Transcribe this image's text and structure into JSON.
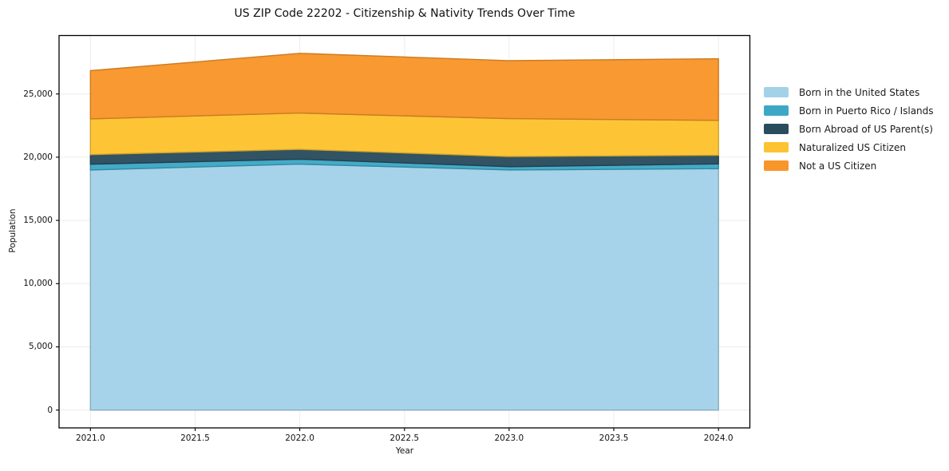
{
  "chart_data": {
    "type": "area",
    "stacked": true,
    "title": "US ZIP Code 22202 - Citizenship & Nativity Trends Over Time",
    "xlabel": "Year",
    "ylabel": "Population",
    "x": [
      2021,
      2022,
      2023,
      2024
    ],
    "series": [
      {
        "name": "Born in the United States",
        "color": "#a3d2e8",
        "values": [
          18990,
          19450,
          18990,
          19090
        ]
      },
      {
        "name": "Born in Puerto Rico / Islands",
        "color": "#3da8c6",
        "values": [
          450,
          390,
          260,
          380
        ]
      },
      {
        "name": "Born Abroad of US Parent(s)",
        "color": "#2a4d5e",
        "values": [
          760,
          780,
          800,
          680
        ]
      },
      {
        "name": "Naturalized US Citizen",
        "color": "#fdc330",
        "values": [
          2830,
          2870,
          3000,
          2760
        ]
      },
      {
        "name": "Not a US Citizen",
        "color": "#f8962a",
        "values": [
          3810,
          4720,
          4580,
          4870
        ]
      }
    ],
    "totals": [
      26840,
      28210,
      27630,
      27780
    ],
    "xlim": [
      2020.85,
      2024.15
    ],
    "ylim": [
      -1410,
      29620
    ],
    "xticks": [
      2021.0,
      2021.5,
      2022.0,
      2022.5,
      2023.0,
      2023.5,
      2024.0
    ],
    "xtick_labels": [
      "2021.0",
      "2021.5",
      "2022.0",
      "2022.5",
      "2023.0",
      "2023.5",
      "2024.0"
    ],
    "yticks": [
      0,
      5000,
      10000,
      15000,
      20000,
      25000
    ],
    "ytick_labels": [
      "0",
      "5,000",
      "10,000",
      "15,000",
      "20,000",
      "25,000"
    ],
    "grid": true,
    "grid_color": "#dddddd",
    "axis_color": "#000000",
    "legend_position": "right-outside",
    "background": "#ffffff"
  }
}
